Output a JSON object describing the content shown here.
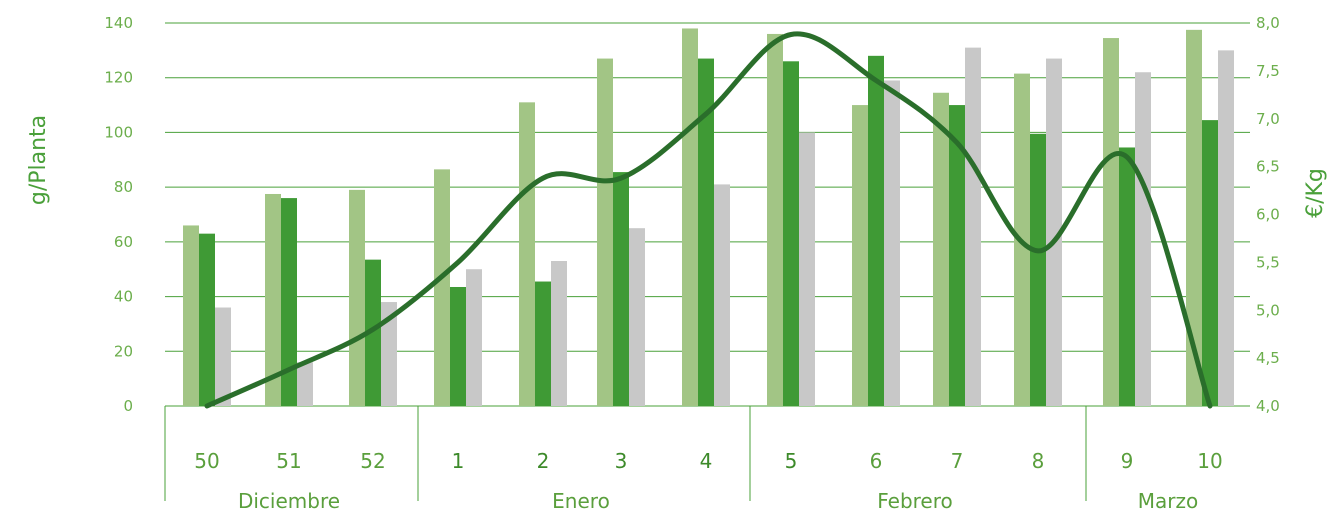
{
  "chart_data": {
    "type": "bar",
    "categories": [
      "50",
      "51",
      "52",
      "1",
      "2",
      "3",
      "4",
      "5",
      "6",
      "7",
      "8",
      "9",
      "10"
    ],
    "months": [
      {
        "label": "Diciembre",
        "categories": [
          "50",
          "51",
          "52"
        ]
      },
      {
        "label": "Enero",
        "categories": [
          "1",
          "2",
          "3",
          "4"
        ]
      },
      {
        "label": "Febrero",
        "categories": [
          "5",
          "6",
          "7",
          "8"
        ]
      },
      {
        "label": "Marzo",
        "categories": [
          "9",
          "10"
        ]
      }
    ],
    "series": [
      {
        "values": [
          66,
          77.5,
          79,
          86.5,
          111,
          127,
          138,
          136,
          110,
          114.5,
          121.5,
          134.5,
          137.5
        ],
        "color": "#a2c585",
        "axis": "left"
      },
      {
        "values": [
          63,
          76,
          53.5,
          43.5,
          45.5,
          85.5,
          127,
          126,
          128,
          110,
          99.5,
          94.5,
          104.5
        ],
        "color": "#3f9a35",
        "axis": "left"
      },
      {
        "values": [
          36,
          16,
          38,
          50,
          53,
          65,
          81,
          100,
          119,
          131,
          127,
          122,
          130
        ],
        "color": "#c8c8c8",
        "axis": "left"
      },
      {
        "type": "line",
        "values": [
          4.0,
          4.38,
          4.8,
          5.5,
          6.38,
          6.38,
          7.05,
          7.88,
          7.4,
          6.75,
          5.62,
          6.6,
          4.0
        ],
        "color": "#2a6e2b",
        "axis": "right"
      }
    ],
    "yleft": {
      "label": "g/Planta",
      "ticks": [
        "0",
        "20",
        "40",
        "60",
        "80",
        "100",
        "120",
        "140"
      ],
      "ylim": [
        0,
        140
      ]
    },
    "yright": {
      "label": "€/Kg",
      "ticks": [
        "4,0",
        "4,5",
        "5,0",
        "5,5",
        "6,0",
        "6,5",
        "7,0",
        "7,5",
        "8,0"
      ],
      "ylim": [
        4.0,
        8.0
      ]
    },
    "grid": true,
    "legend": "none",
    "colors": {
      "grid": "#4aa03a",
      "text": "#6cae4c",
      "line": "#2a6e2b"
    }
  }
}
